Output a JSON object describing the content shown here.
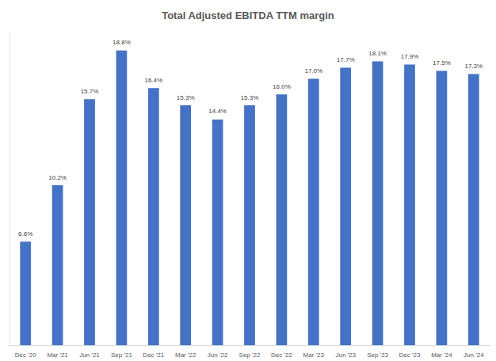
{
  "chart_data": {
    "type": "bar",
    "title": "Total Adjusted EBITDA TTM margin",
    "categories": [
      "Dec '20",
      "Mar '21",
      "Jun '21",
      "Sep '21",
      "Dec '21",
      "Mar '22",
      "Jun '22",
      "Sep '22",
      "Dec '22",
      "Mar '23",
      "Jun '23",
      "Sep '23",
      "Dec '23",
      "Mar '24",
      "Jun '24"
    ],
    "values": [
      6.6,
      10.2,
      15.7,
      18.8,
      16.4,
      15.3,
      14.4,
      15.3,
      16.0,
      17.0,
      17.7,
      18.1,
      17.9,
      17.5,
      17.3
    ],
    "value_labels": [
      "6.6%",
      "10.2%",
      "15.7%",
      "18.8%",
      "16.4%",
      "15.3%",
      "14.4%",
      "15.3%",
      "16.0%",
      "17.0%",
      "17.7%",
      "18.1%",
      "17.9%",
      "17.5%",
      "17.3%"
    ],
    "color": "#4472c4",
    "ylim": [
      0,
      20
    ],
    "grid": false,
    "data_labels": true,
    "tick_labels": "x"
  }
}
